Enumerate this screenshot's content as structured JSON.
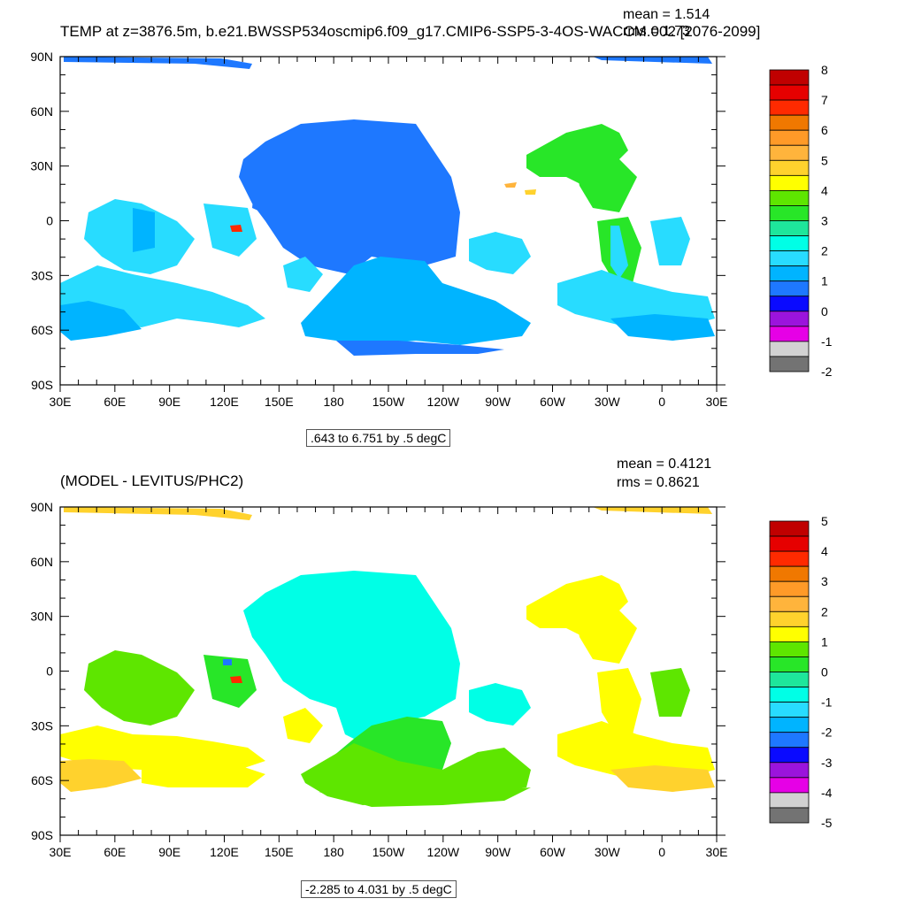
{
  "panels": [
    {
      "title": "TEMP at z=3876.5m, b.e21.BWSSP534oscmip6.f09_g17.CMIP6-SSP5-3-4OS-WACCM.002 [2076-2099]",
      "stats": {
        "mean_label": "mean = 1.514",
        "rms_label": "rms = 1.73"
      },
      "range_label": ".643 to 6.751 by .5 degC",
      "colorbar_labels": [
        "8",
        "7",
        "6",
        "5",
        "4",
        "3",
        "2",
        "1",
        "0",
        "-1",
        "-2"
      ]
    },
    {
      "title": "(MODEL - LEVITUS/PHC2)",
      "stats": {
        "mean_label": "mean = 0.4121",
        "rms_label": "rms = 0.8621"
      },
      "range_label": "-2.285 to 4.031 by .5 degC",
      "colorbar_labels": [
        "5",
        "4",
        "3",
        "2",
        "1",
        "0",
        "-1",
        "-2",
        "-3",
        "-4",
        "-5"
      ]
    }
  ],
  "axes": {
    "lat_labels": [
      "90N",
      "60N",
      "30N",
      "0",
      "30S",
      "60S",
      "90S"
    ],
    "lon_labels": [
      "30E",
      "60E",
      "90E",
      "120E",
      "150E",
      "180",
      "150W",
      "120W",
      "90W",
      "60W",
      "30W",
      "0",
      "30E"
    ]
  },
  "colors": {
    "colorbar": [
      "#c00000",
      "#e60000",
      "#ff2a00",
      "#f07800",
      "#ff9a28",
      "#ffb43c",
      "#ffd22d",
      "#ffff00",
      "#5ee600",
      "#28e628",
      "#1ee69b",
      "#00ffe6",
      "#28dcff",
      "#00b4ff",
      "#1e78ff",
      "#0a0aff",
      "#9b14dc",
      "#e600e6",
      "#d2d2d2",
      "#737373"
    ]
  }
}
